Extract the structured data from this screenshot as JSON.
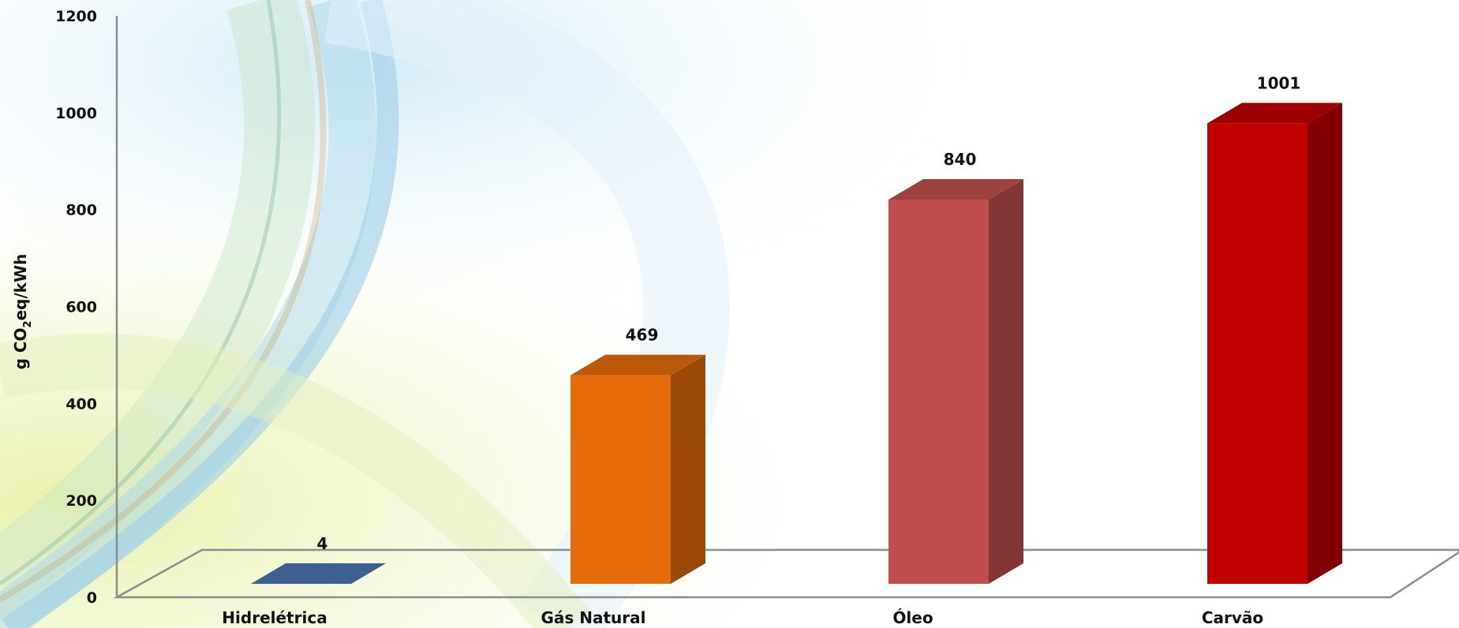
{
  "chart_data": {
    "type": "bar",
    "categories": [
      "Hidrelétrica",
      "Gás Natural",
      "Óleo",
      "Carvão"
    ],
    "values": [
      4,
      469,
      840,
      1001
    ],
    "value_labels": [
      "4",
      "469",
      "840",
      "1001"
    ],
    "colors": [
      "#3F6597",
      "#E46C0A",
      "#C0504D",
      "#C00000"
    ],
    "ylabel": {
      "prefix": "g CO",
      "subscript": "2",
      "suffix": "eq/kWh"
    },
    "ylim": [
      0,
      1200
    ],
    "yticks": [
      0,
      200,
      400,
      600,
      800,
      1000,
      1200
    ],
    "style": "3d-column",
    "grid": false
  }
}
